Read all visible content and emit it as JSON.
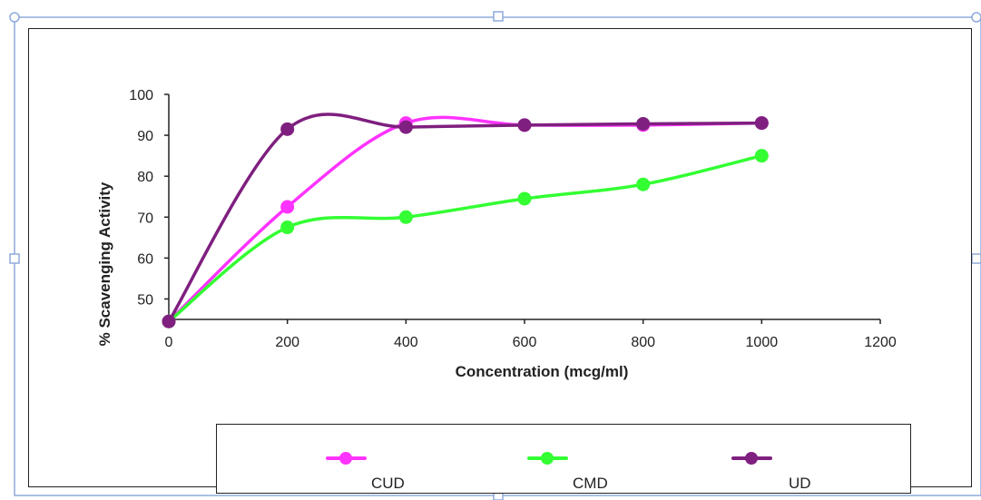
{
  "chart_data": {
    "type": "line",
    "title": "",
    "xlabel": "Concentration (mcg/ml)",
    "ylabel": "% Scavenging Activity",
    "x": [
      0,
      200,
      400,
      600,
      800,
      1000
    ],
    "xlim": [
      0,
      1200
    ],
    "ylim": [
      45,
      100
    ],
    "x_ticks": [
      0,
      200,
      400,
      600,
      800,
      1000,
      1200
    ],
    "y_ticks": [
      50,
      60,
      70,
      80,
      90,
      100
    ],
    "grid": false,
    "legend_position": "bottom",
    "smooth": true,
    "series": [
      {
        "name": "CUD",
        "color": "#ff33ff",
        "values": [
          44.5,
          72.5,
          93.0,
          92.5,
          92.5,
          93.0
        ]
      },
      {
        "name": "CMD",
        "color": "#33ff33",
        "values": [
          44.5,
          67.5,
          70.0,
          74.5,
          78.0,
          85.0
        ]
      },
      {
        "name": "UD",
        "color": "#7f1f7f",
        "values": [
          44.5,
          91.5,
          92.0,
          92.5,
          92.8,
          93.0
        ]
      }
    ]
  }
}
